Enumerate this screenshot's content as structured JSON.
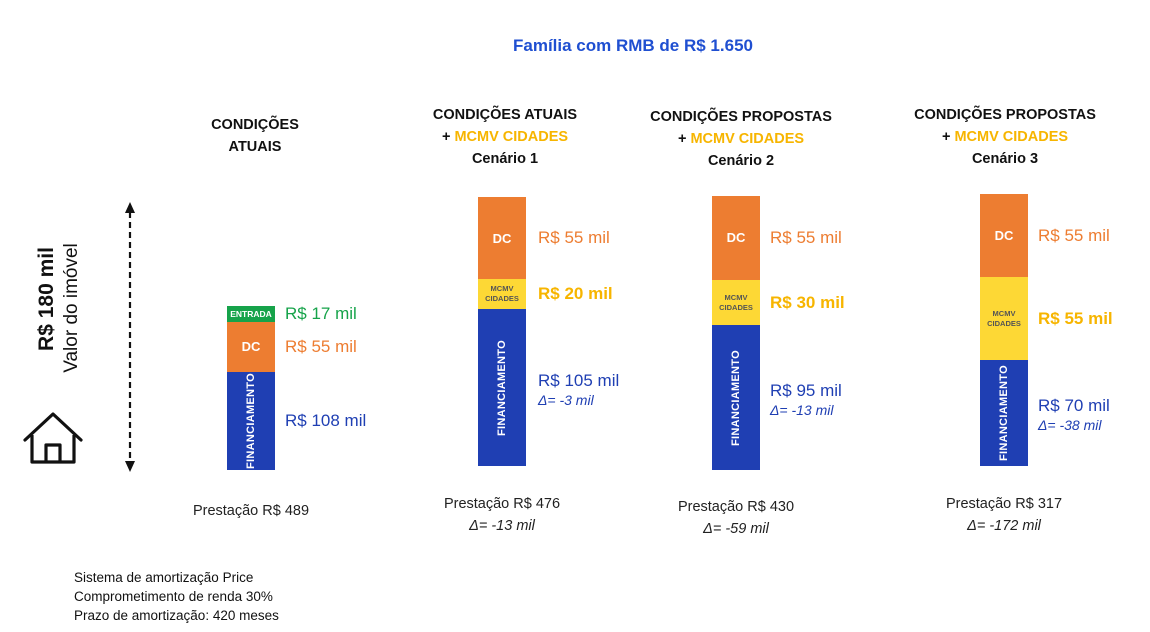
{
  "colors": {
    "entrada": "#16a34a",
    "dc": "#ed7d31",
    "mcmv": "#fdd835",
    "financiamento": "#1f3fb3",
    "title": "#1f4fd1",
    "highlight": "#f7b500"
  },
  "chart_data": {
    "type": "bar",
    "stacked": true,
    "title": "Família com RMB de R$ 1.650",
    "total_label": "R$ 180 mil",
    "total_sublabel": "Valor do imóvel",
    "house_icon": "house-icon",
    "segments_order": [
      "Entrada",
      "DC",
      "MCMV Cidades",
      "Financiamento"
    ],
    "columns": [
      {
        "header": [
          "CONDIÇÕES",
          "ATUAIS"
        ],
        "segments": [
          {
            "key": "financiamento",
            "label": "FINANCIAMENTO",
            "value": 108,
            "value_label": "R$ 108 mil"
          },
          {
            "key": "dc",
            "label": "DC",
            "value": 55,
            "value_label": "R$ 55 mil"
          },
          {
            "key": "entrada",
            "label": "ENTRADA",
            "value": 17,
            "value_label": "R$ 17 mil"
          }
        ],
        "prestacao": "Prestação R$ 489",
        "prestacao_delta": null
      },
      {
        "header": [
          "CONDIÇÕES ATUAIS",
          "+ MCMV CIDADES",
          "Cenário 1"
        ],
        "segments": [
          {
            "key": "financiamento",
            "label": "FINANCIAMENTO",
            "value": 105,
            "value_label": "R$ 105 mil",
            "delta": "Δ= -3 mil"
          },
          {
            "key": "mcmv",
            "label": "MCMV CIDADES",
            "value": 20,
            "value_label": "R$ 20 mil"
          },
          {
            "key": "dc",
            "label": "DC",
            "value": 55,
            "value_label": "R$ 55 mil"
          }
        ],
        "prestacao": "Prestação R$ 476",
        "prestacao_delta": "Δ= -13 mil"
      },
      {
        "header": [
          "CONDIÇÕES PROPOSTAS",
          "+ MCMV CIDADES",
          "Cenário 2"
        ],
        "segments": [
          {
            "key": "financiamento",
            "label": "FINANCIAMENTO",
            "value": 95,
            "value_label": "R$ 95 mil",
            "delta": "Δ= -13 mil"
          },
          {
            "key": "mcmv",
            "label": "MCMV CIDADES",
            "value": 30,
            "value_label": "R$ 30 mil"
          },
          {
            "key": "dc",
            "label": "DC",
            "value": 55,
            "value_label": "R$ 55 mil"
          }
        ],
        "prestacao": "Prestação R$ 430",
        "prestacao_delta": "Δ= -59 mil"
      },
      {
        "header": [
          "CONDIÇÕES PROPOSTAS",
          "+ MCMV CIDADES",
          "Cenário 3"
        ],
        "segments": [
          {
            "key": "financiamento",
            "label": "FINANCIAMENTO",
            "value": 70,
            "value_label": "R$ 70 mil",
            "delta": "Δ= -38 mil"
          },
          {
            "key": "mcmv",
            "label": "MCMV CIDADES",
            "value": 55,
            "value_label": "R$ 55 mil"
          },
          {
            "key": "dc",
            "label": "DC",
            "value": 55,
            "value_label": "R$ 55 mil"
          }
        ],
        "prestacao": "Prestação R$ 317",
        "prestacao_delta": "Δ= -172 mil"
      }
    ],
    "notes": [
      "Sistema de amortização Price",
      "Comprometimento de renda 30%",
      "Prazo de amortização: 420 meses"
    ]
  }
}
